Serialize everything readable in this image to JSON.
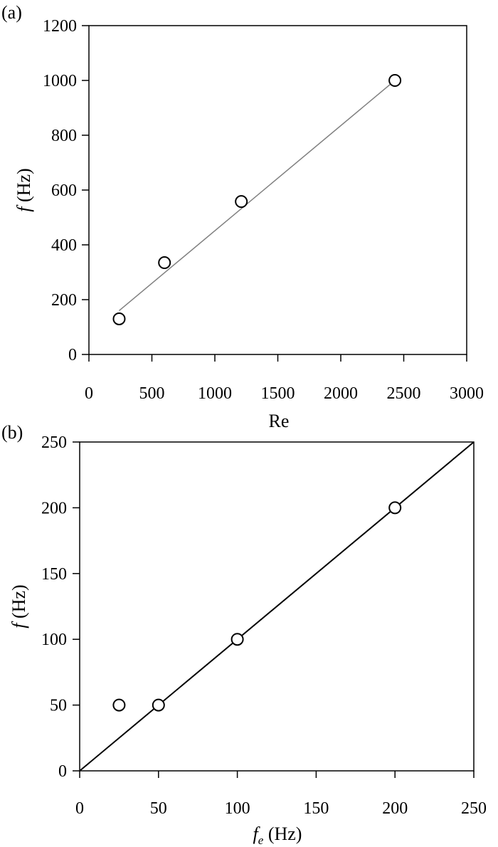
{
  "chart_data": [
    {
      "panel_label": "(a)",
      "type": "scatter",
      "xlabel": "Re",
      "ylabel_italic": "f",
      "ylabel_rest": " (Hz)",
      "xlim": [
        0,
        3000
      ],
      "ylim": [
        0,
        1200
      ],
      "xticks": [
        0,
        500,
        1000,
        1500,
        2000,
        2500,
        3000
      ],
      "yticks": [
        0,
        200,
        400,
        600,
        800,
        1000,
        1200
      ],
      "grid": false,
      "points": [
        {
          "x": 240,
          "y": 130
        },
        {
          "x": 600,
          "y": 335
        },
        {
          "x": 1210,
          "y": 558
        },
        {
          "x": 2430,
          "y": 1000
        }
      ],
      "fit_line": {
        "x": [
          240,
          2430
        ],
        "y": [
          160,
          1000
        ],
        "color": "#808080"
      }
    },
    {
      "panel_label": "(b)",
      "type": "scatter",
      "xlabel_italic": "f",
      "xlabel_sub": "e",
      "xlabel_rest": " (Hz)",
      "ylabel_italic": "f",
      "ylabel_rest": " (Hz)",
      "xlim": [
        0,
        250
      ],
      "ylim": [
        0,
        250
      ],
      "xticks": [
        0,
        50,
        100,
        150,
        200,
        250
      ],
      "yticks": [
        0,
        50,
        100,
        150,
        200,
        250
      ],
      "grid": false,
      "points": [
        {
          "x": 25,
          "y": 50
        },
        {
          "x": 50,
          "y": 50
        },
        {
          "x": 100,
          "y": 100
        },
        {
          "x": 200,
          "y": 200
        }
      ],
      "fit_line": {
        "x": [
          0,
          250
        ],
        "y": [
          0,
          250
        ],
        "color": "#000000"
      }
    }
  ]
}
